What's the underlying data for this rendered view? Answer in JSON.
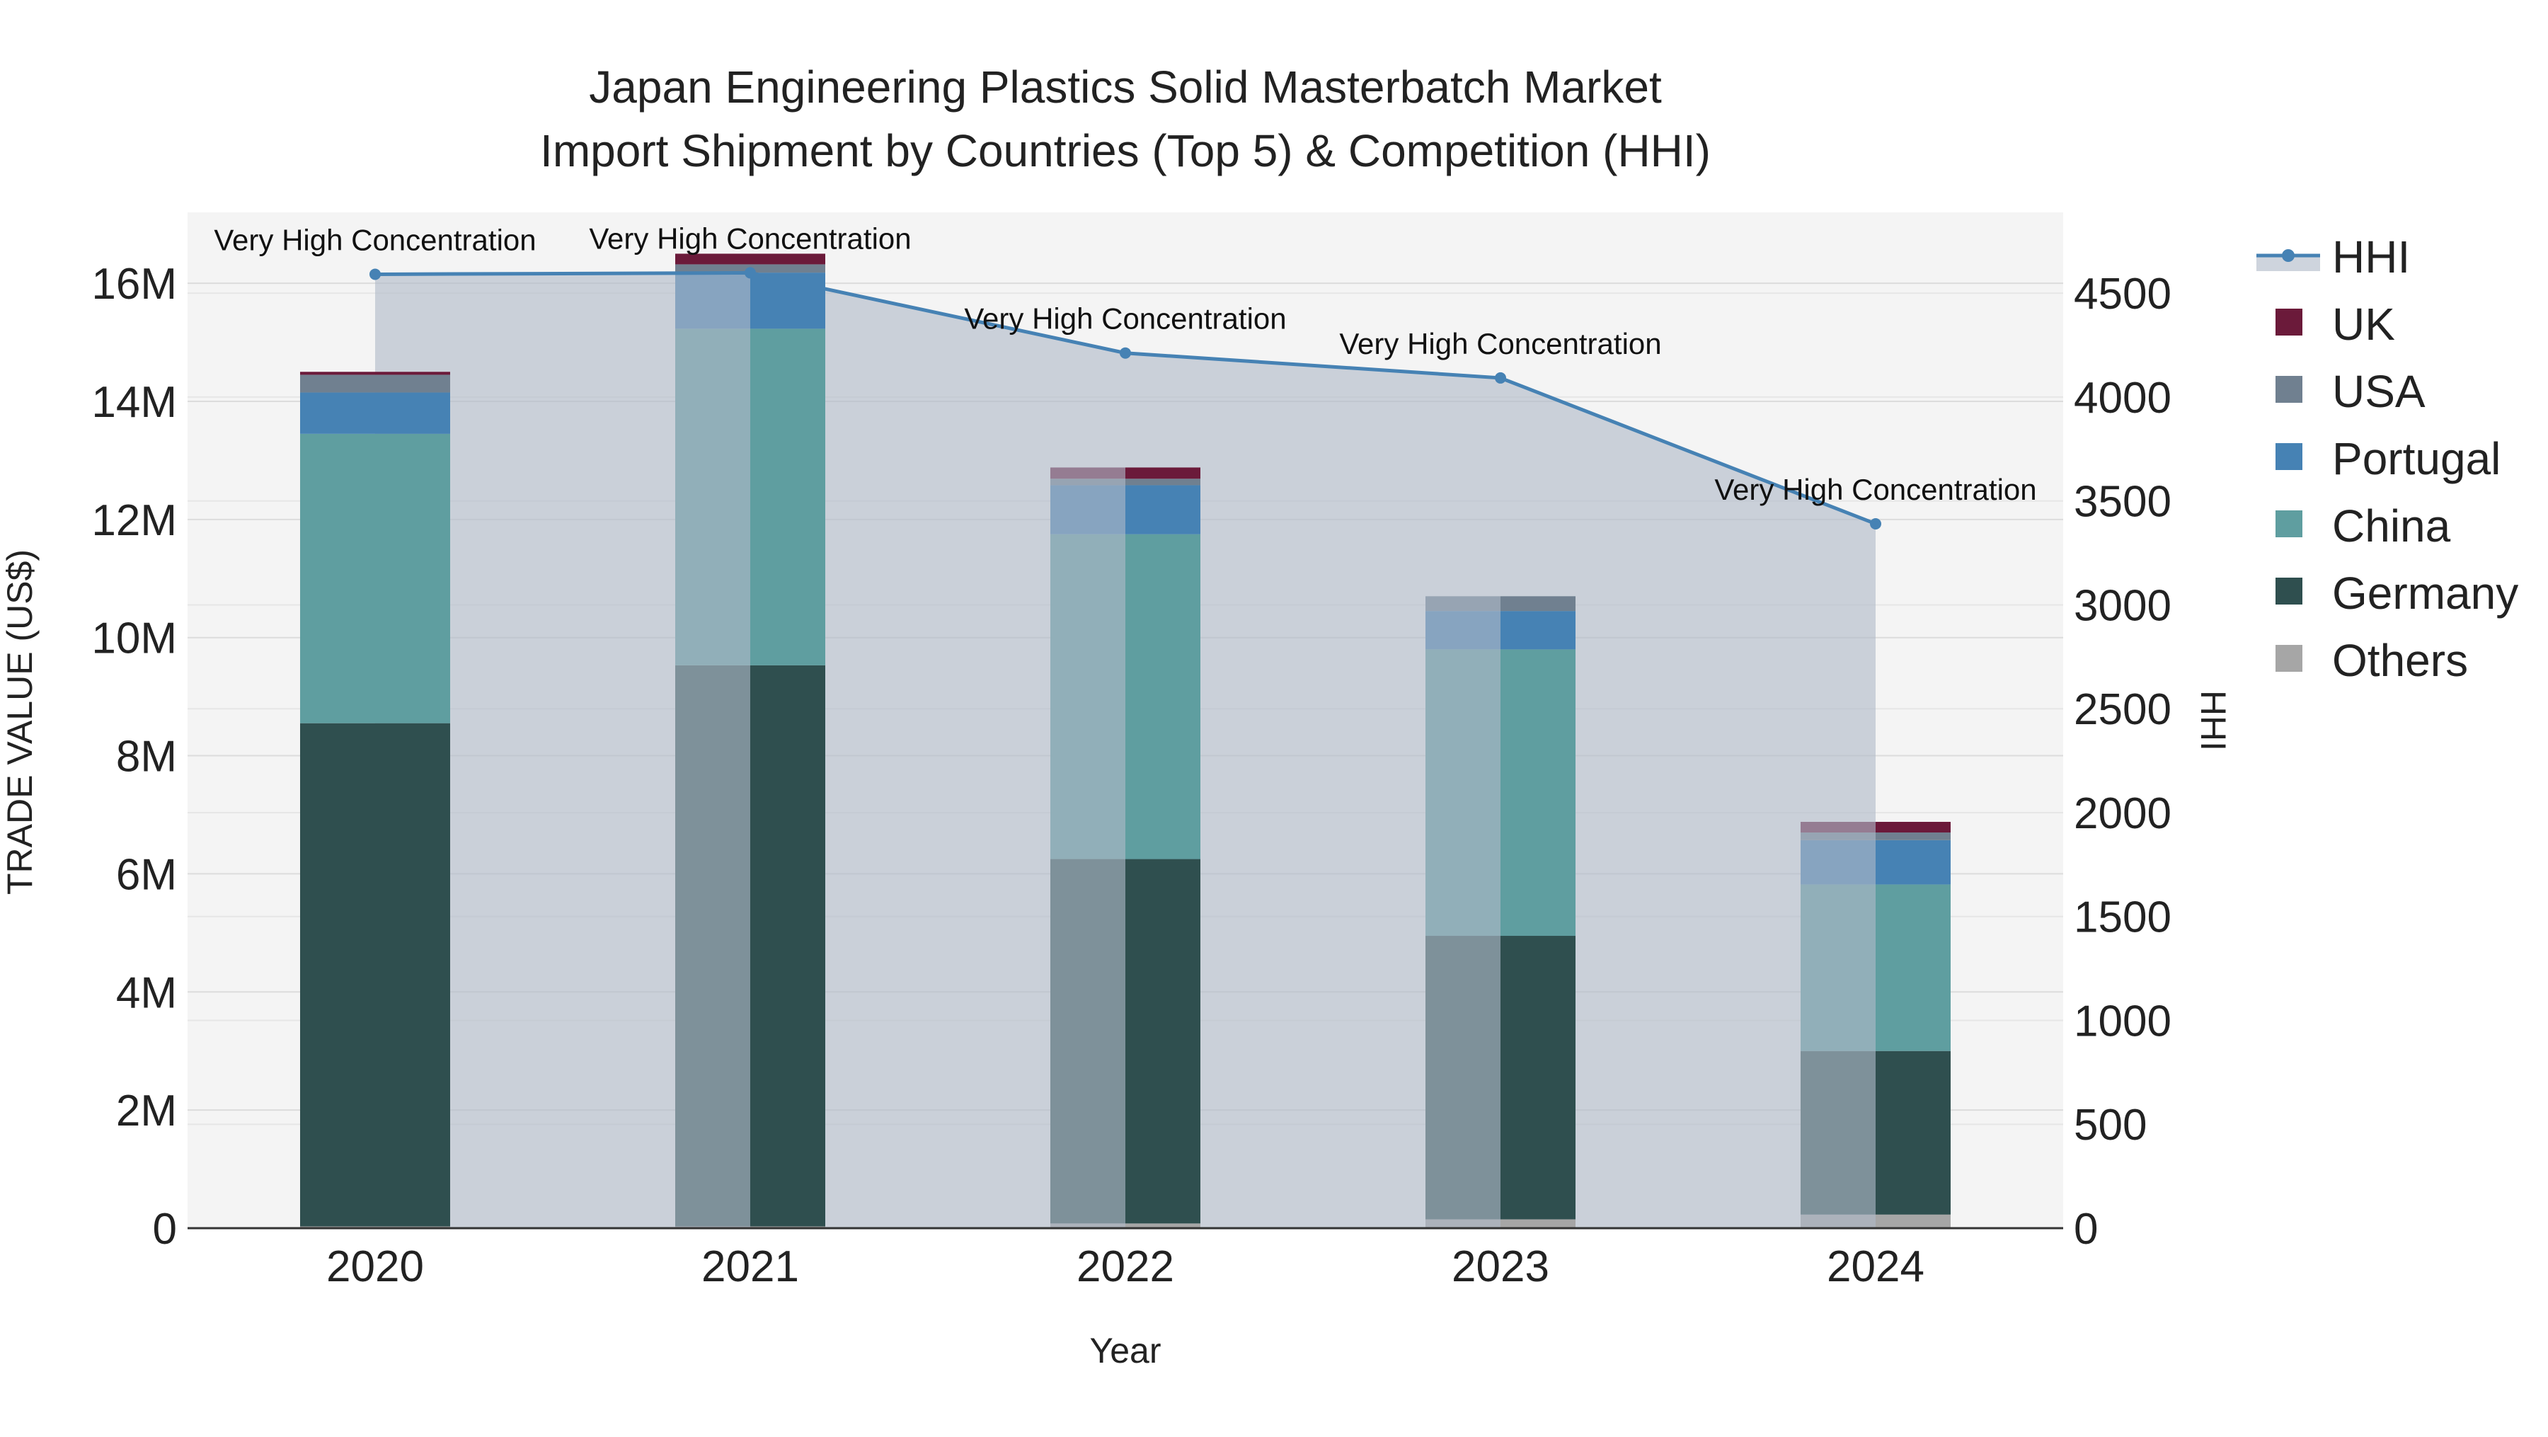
{
  "chart_data": {
    "type": "bar",
    "title_line1": "Japan Engineering Plastics Solid Masterbatch Market",
    "title_line2": "Import Shipment by Countries (Top 5) & Competition (HHI)",
    "xlabel": "Year",
    "ylabel": "TRADE VALUE (US$)",
    "y2label": "HHI",
    "categories": [
      "2020",
      "2021",
      "2022",
      "2023",
      "2024"
    ],
    "ylim": [
      0,
      17200000
    ],
    "y2lim": [
      0,
      4889
    ],
    "y_ticks": [
      0,
      2000000,
      4000000,
      6000000,
      8000000,
      10000000,
      12000000,
      14000000,
      16000000
    ],
    "y_tick_labels": [
      "0",
      "2M",
      "4M",
      "6M",
      "8M",
      "10M",
      "12M",
      "14M",
      "16M"
    ],
    "y2_ticks": [
      0,
      500,
      1000,
      1500,
      2000,
      2500,
      3000,
      3500,
      4000,
      4500
    ],
    "y2_tick_labels": [
      "0",
      "500",
      "1000",
      "1500",
      "2000",
      "2500",
      "3000",
      "3500",
      "4000",
      "4500"
    ],
    "series": [
      {
        "name": "Others",
        "color": "#a6a6a6",
        "values": [
          30000,
          30000,
          80000,
          150000,
          230000
        ]
      },
      {
        "name": "Germany",
        "color": "#2f4f4f",
        "values": [
          8520000,
          9500000,
          6170000,
          4800000,
          2770000
        ]
      },
      {
        "name": "China",
        "color": "#5f9ea0",
        "values": [
          4900000,
          5700000,
          5500000,
          4850000,
          2820000
        ]
      },
      {
        "name": "Portugal",
        "color": "#4682b4",
        "values": [
          700000,
          950000,
          830000,
          650000,
          750000
        ]
      },
      {
        "name": "USA",
        "color": "#708090",
        "values": [
          300000,
          140000,
          110000,
          250000,
          130000
        ]
      },
      {
        "name": "UK",
        "color": "#6b1a3a",
        "values": [
          50000,
          180000,
          190000,
          0,
          180000
        ]
      }
    ],
    "hhi": {
      "name": "HHI",
      "color": "#4682b4",
      "values": [
        4591,
        4598,
        4212,
        4092,
        3390
      ],
      "annotations": [
        "Very High Concentration",
        "Very High Concentration",
        "Very High Concentration",
        "Very High Concentration",
        "Very High Concentration"
      ]
    },
    "legend": [
      "HHI",
      "UK",
      "USA",
      "Portugal",
      "China",
      "Germany",
      "Others"
    ],
    "legend_position": "top-right"
  }
}
